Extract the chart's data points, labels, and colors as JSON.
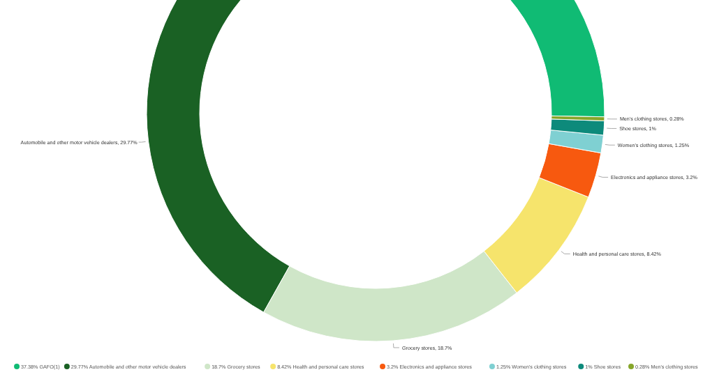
{
  "chart_data": {
    "type": "donut",
    "categories": [
      "37.38% GAFO(1)",
      "29.77% Automobile and other motor vehicle dealers",
      "18.7% Grocery stores",
      "8.42% Health and personal care stores",
      "3.2% Electronics and appliance stores",
      "1.25% Women's clothing stores",
      "1% Shoe stores",
      "0.28% Men's clothing stores"
    ],
    "values": [
      37.38,
      29.77,
      18.7,
      8.42,
      3.2,
      1.25,
      1,
      0.28
    ],
    "value_labels": [
      null,
      "Automobile and other motor vehicle dealers, 29.77%",
      "Grocery stores, 18.7%",
      "Health and personal care stores, 8.42%",
      "Electronics and appliance stores, 3.2%",
      "Women's clothing stores, 1.25%",
      "Shoe stores, 1%",
      "Men's clothing stores, 0.28%"
    ],
    "colors": [
      "#10bb74",
      "#1a6124",
      "#cfe6c8",
      "#f6e46c",
      "#f7590f",
      "#7fd0d2",
      "#0d8a7b",
      "#86a62a"
    ],
    "legend": "bottom"
  }
}
